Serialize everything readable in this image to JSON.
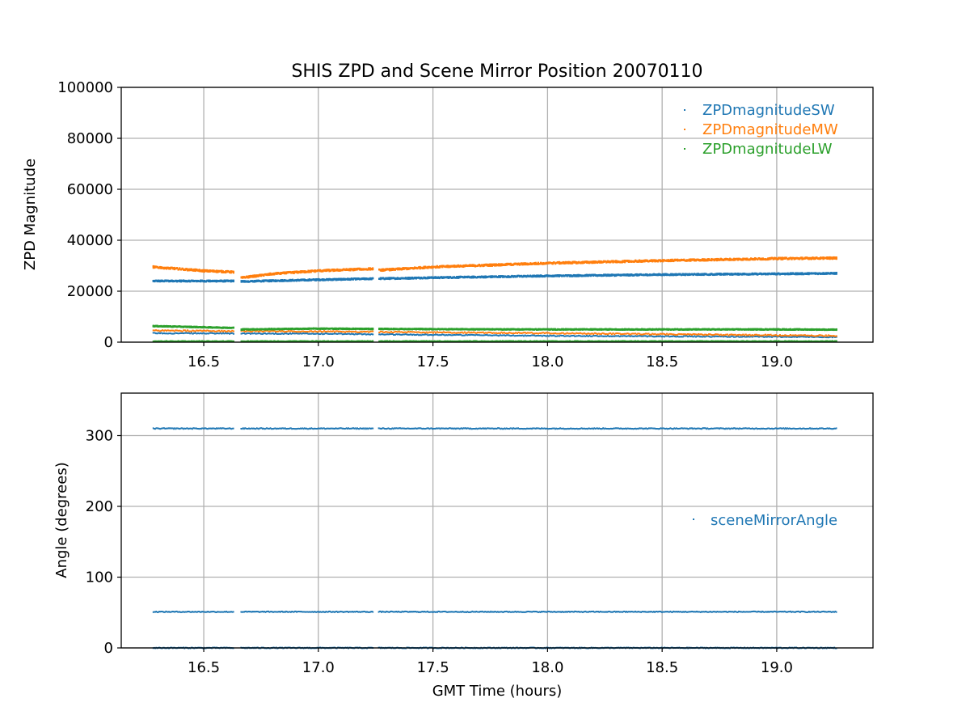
{
  "title": "SHIS ZPD and Scene Mirror Position 20070110",
  "colors": {
    "sw": "#1f77b4",
    "mw": "#ff7f0e",
    "lw": "#2ca02c",
    "grid": "#b0b0b0"
  },
  "chart_data": [
    {
      "type": "scatter",
      "title": "SHIS ZPD and Scene Mirror Position 20070110",
      "xlabel": "",
      "ylabel": "ZPD Magnitude",
      "xlim": [
        16.14,
        19.42
      ],
      "ylim": [
        0,
        100000
      ],
      "x_ticks": [
        "16.5",
        "17.0",
        "17.5",
        "18.0",
        "18.5",
        "19.0"
      ],
      "y_ticks": [
        "0",
        "20000",
        "40000",
        "60000",
        "80000",
        "100000"
      ],
      "grid": true,
      "legend_position": "top-right",
      "gaps": [
        [
          16.63,
          16.66
        ],
        [
          17.24,
          17.26
        ]
      ],
      "series": [
        {
          "name": "ZPDmagnitudeSW",
          "color": "#1f77b4",
          "x": [
            16.28,
            16.63,
            16.66,
            17.0,
            17.5,
            18.0,
            18.5,
            19.0,
            19.26
          ],
          "y": [
            24000,
            24000,
            23800,
            24500,
            25300,
            26000,
            26500,
            26800,
            27000
          ],
          "low_x": [
            16.28,
            17.0,
            18.0,
            19.26
          ],
          "low_y": [
            3500,
            3300,
            2500,
            2000
          ]
        },
        {
          "name": "ZPDmagnitudeMW",
          "color": "#ff7f0e",
          "x": [
            16.28,
            16.4,
            16.5,
            16.63,
            16.66,
            16.8,
            17.0,
            17.24,
            17.26,
            17.5,
            18.0,
            18.5,
            19.0,
            19.26
          ],
          "y": [
            29500,
            28700,
            28000,
            27500,
            25200,
            26800,
            28000,
            28800,
            28200,
            29500,
            31000,
            32000,
            32800,
            33000
          ],
          "low_x": [
            16.28,
            17.0,
            18.0,
            19.26
          ],
          "low_y": [
            4500,
            4200,
            3500,
            2500
          ]
        },
        {
          "name": "ZPDmagnitudeLW",
          "color": "#2ca02c",
          "x": [
            16.28,
            16.63,
            16.66,
            17.0,
            17.5,
            18.0,
            18.5,
            19.0,
            19.26
          ],
          "y": [
            6300,
            5600,
            5000,
            5300,
            5100,
            5000,
            5000,
            5000,
            4900
          ],
          "low_x": [
            16.28,
            19.26
          ],
          "low_y": [
            400,
            400
          ]
        }
      ]
    },
    {
      "type": "scatter",
      "title": "",
      "xlabel": "GMT Time (hours)",
      "ylabel": "Angle (degrees)",
      "xlim": [
        16.14,
        19.42
      ],
      "ylim": [
        0,
        360
      ],
      "x_ticks": [
        "16.5",
        "17.0",
        "17.5",
        "18.0",
        "18.5",
        "19.0"
      ],
      "y_ticks": [
        "0",
        "100",
        "200",
        "300"
      ],
      "grid": true,
      "legend_position": "center-right",
      "series": [
        {
          "name": "sceneMirrorAngle",
          "color": "#1f77b4",
          "levels": [
            310,
            51,
            0
          ],
          "x_range": [
            16.28,
            19.26
          ]
        }
      ]
    }
  ]
}
